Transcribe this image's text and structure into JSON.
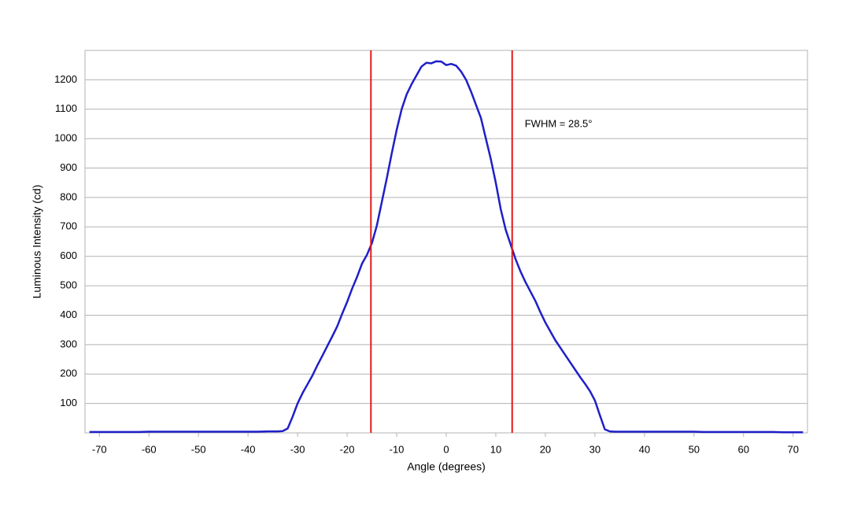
{
  "chart_data": {
    "type": "line",
    "x_label": "Angle (degrees)",
    "y_label": "Luminous Intensity (cd)",
    "x": [
      -72,
      -70,
      -68,
      -66,
      -64,
      -62,
      -60,
      -58,
      -56,
      -54,
      -52,
      -50,
      -48,
      -46,
      -44,
      -42,
      -40,
      -38,
      -36,
      -34,
      -33,
      -32,
      -31,
      -30,
      -29,
      -28,
      -27,
      -26,
      -25,
      -24,
      -23,
      -22,
      -21,
      -20,
      -19,
      -18,
      -17,
      -16,
      -15,
      -14,
      -13,
      -12,
      -11,
      -10,
      -9,
      -8,
      -7,
      -6,
      -5,
      -4,
      -3,
      -2,
      -1,
      0,
      1,
      2,
      3,
      4,
      5,
      6,
      7,
      8,
      9,
      10,
      11,
      12,
      13,
      14,
      15,
      16,
      17,
      18,
      19,
      20,
      21,
      22,
      23,
      24,
      25,
      26,
      27,
      28,
      29,
      30,
      31,
      32,
      33,
      34,
      36,
      38,
      40,
      42,
      44,
      46,
      48,
      50,
      52,
      54,
      56,
      58,
      60,
      62,
      64,
      66,
      68,
      70,
      72
    ],
    "series": [
      {
        "name": "Luminous Intensity",
        "color": "#1f1fc8",
        "values": [
          3,
          3,
          3,
          3,
          3,
          3,
          4,
          4,
          4,
          4,
          4,
          4,
          4,
          4,
          4,
          4,
          4,
          4,
          5,
          5,
          6,
          15,
          55,
          100,
          135,
          165,
          195,
          230,
          262,
          295,
          328,
          362,
          405,
          445,
          490,
          530,
          575,
          605,
          645,
          705,
          785,
          865,
          950,
          1030,
          1100,
          1150,
          1185,
          1215,
          1245,
          1258,
          1256,
          1263,
          1262,
          1250,
          1254,
          1248,
          1228,
          1200,
          1160,
          1115,
          1070,
          1000,
          930,
          850,
          760,
          690,
          640,
          590,
          548,
          512,
          480,
          448,
          410,
          375,
          345,
          315,
          290,
          265,
          240,
          215,
          190,
          167,
          142,
          110,
          60,
          12,
          5,
          4,
          4,
          4,
          4,
          4,
          4,
          4,
          4,
          4,
          3,
          3,
          3,
          3,
          3,
          3,
          3,
          3,
          2,
          2,
          2
        ]
      }
    ],
    "xlim": [
      -72.9,
      72.9
    ],
    "xticks": [
      -70,
      -60,
      -50,
      -40,
      -30,
      -20,
      -10,
      0,
      10,
      20,
      30,
      40,
      50,
      60,
      70
    ],
    "ylim": [
      0,
      1300
    ],
    "yticks": [
      100,
      200,
      300,
      400,
      500,
      600,
      700,
      800,
      900,
      1000,
      1100,
      1200
    ],
    "grid": true,
    "reference_lines": {
      "x": [
        -15.2,
        13.3
      ],
      "color": "#e31a1a"
    },
    "annotation": "FWHM = 28.5°"
  }
}
